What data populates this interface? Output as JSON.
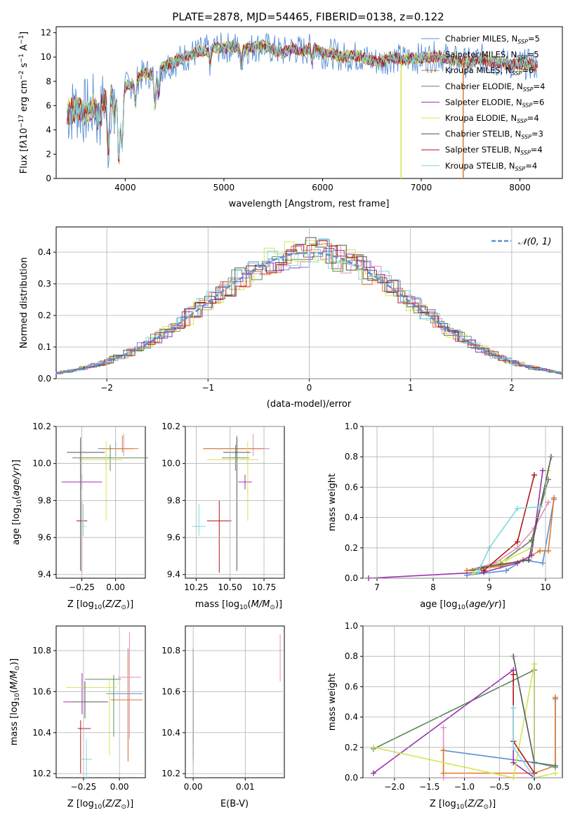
{
  "title": "PLATE=2878, MJD=54465, FIBERID=0138, z=0.122",
  "colors": {
    "chabrier_miles": "#5b8fd6",
    "salpeter_miles": "#e88bbf",
    "kroupa_miles": "#e07b28",
    "chabrier_elodie": "#5a8a5a",
    "salpeter_elodie": "#9c30b0",
    "kroupa_elodie": "#d4e650",
    "chabrier_stelib": "#555555",
    "salpeter_stelib": "#b01818",
    "kroupa_stelib": "#7fd9df"
  },
  "chart_data": [
    {
      "id": "spectrum",
      "type": "line",
      "title": "PLATE=2878, MJD=54465, FIBERID=0138, z=0.122",
      "xlabel": "wavelength [Angstrom, rest frame]",
      "ylabel": "Flux [f_λ 10^-17 erg cm^-2 s^-1 A^-1]",
      "xlim": [
        3300,
        8430
      ],
      "ylim": [
        0,
        12.5
      ],
      "xticks": [
        "4000",
        "5000",
        "6000",
        "7000",
        "8000"
      ],
      "yticks": [
        "0",
        "2",
        "4",
        "6",
        "8",
        "10",
        "12"
      ],
      "data_series": {
        "x": [
          3410,
          3500,
          3600,
          3700,
          3800,
          3900,
          3950,
          4000,
          4100,
          4200,
          4300,
          4400,
          4500,
          4600,
          4700,
          4800,
          4900,
          5000,
          5100,
          5200,
          5300,
          5400,
          5500,
          5600,
          5700,
          5800,
          5900,
          6000,
          6100,
          6200,
          6300,
          6400,
          6500,
          6600,
          6700,
          6800,
          6900,
          7000,
          7100,
          7200,
          7300,
          7400,
          7500,
          7600,
          7700,
          7800,
          7900,
          8000,
          8100,
          8180
        ],
        "y": [
          5.4,
          5.8,
          5.5,
          6.0,
          6.5,
          6.8,
          5.2,
          7.5,
          8.0,
          8.7,
          8.5,
          9.3,
          9.6,
          10.0,
          10.3,
          10.5,
          10.8,
          10.7,
          10.9,
          10.6,
          10.8,
          10.9,
          10.6,
          10.4,
          10.7,
          10.5,
          10.8,
          10.3,
          10.3,
          10.0,
          10.1,
          10.0,
          9.7,
          9.6,
          10.0,
          9.8,
          9.9,
          9.9,
          10.0,
          10.1,
          9.8,
          9.6,
          9.5,
          9.9,
          9.6,
          9.6,
          9.4,
          9.4,
          9.4,
          9.3
        ]
      },
      "legend": [
        "Chabrier MILES, N_SSP=5",
        "Salpeter MILES, N_SSP=5",
        "Kroupa MILES, N_SSP=6",
        "Chabrier ELODIE, N_SSP=4",
        "Salpeter ELODIE, N_SSP=6",
        "Kroupa ELODIE, N_SSP=4",
        "Chabrier STELIB, N_SSP=3",
        "Salpeter STELIB, N_SSP=4",
        "Kroupa STELIB, N_SSP=4"
      ],
      "legend_placement": "upper right",
      "grid": false
    },
    {
      "id": "residuals",
      "type": "histogram",
      "xlabel": "(data-model)/error",
      "ylabel": "Normed distribution",
      "xlim": [
        -2.5,
        2.5
      ],
      "ylim": [
        0,
        0.48
      ],
      "xticks": [
        "−2",
        "−1",
        "0",
        "1",
        "2"
      ],
      "yticks": [
        "0.0",
        "0.1",
        "0.2",
        "0.3",
        "0.4"
      ],
      "curve_label": "N(0,1)",
      "legend_placement": "upper right",
      "grid": true
    },
    {
      "id": "age_vs_Z",
      "type": "errorbar",
      "xlabel": "Z [log10(Z/Z⊙)]",
      "ylabel": "age  [log10(age/yr)]",
      "xlim": [
        -0.44,
        0.22
      ],
      "ylim": [
        9.38,
        10.2
      ],
      "xticks": [
        "−0.25",
        "0.00"
      ],
      "yticks": [
        "9.4",
        "9.6",
        "9.8",
        "10.0",
        "10.2"
      ],
      "points": [
        {
          "x": 0.0,
          "y": 10.08,
          "xerr": [
            0.13,
            0.13
          ],
          "yerr": [
            0.04,
            0.04
          ]
        },
        {
          "x": 0.06,
          "y": 10.08,
          "xerr": [
            0.07,
            0.07
          ],
          "yerr": [
            0.04,
            0.08
          ]
        },
        {
          "x": 0.05,
          "y": 10.08,
          "xerr": [
            0.15,
            0.12
          ],
          "yerr": [
            0.02,
            0.07
          ]
        },
        {
          "x": -0.04,
          "y": 10.03,
          "xerr": [
            0.28,
            0.28
          ],
          "yerr": [
            0.07,
            0.07
          ]
        },
        {
          "x": -0.25,
          "y": 9.9,
          "xerr": [
            0.15,
            0.15
          ],
          "yerr": [
            0.04,
            0.04
          ]
        },
        {
          "x": -0.07,
          "y": 10.02,
          "xerr": [
            0.2,
            0.12
          ],
          "yerr": [
            0.33,
            0.1
          ]
        },
        {
          "x": -0.26,
          "y": 10.06,
          "xerr": [
            0.1,
            0.18
          ],
          "yerr": [
            0.64,
            0.08
          ]
        },
        {
          "x": -0.25,
          "y": 9.69,
          "xerr": [
            0.04,
            0.04
          ],
          "yerr": [
            0.28,
            0.11
          ]
        },
        {
          "x": -0.24,
          "y": 9.66,
          "xerr": [
            0.02,
            0.02
          ],
          "yerr": [
            0.05,
            0.12
          ]
        }
      ]
    },
    {
      "id": "age_vs_mass",
      "type": "errorbar",
      "xlabel": "mass [log10(M/M⊙)]",
      "ylabel": "",
      "xlim": [
        10.17,
        10.9
      ],
      "ylim": [
        9.38,
        10.2
      ],
      "xticks": [
        "10.25",
        "10.50",
        "10.75"
      ],
      "yticks": [
        "9.4",
        "9.6",
        "9.8",
        "10.0",
        "10.2"
      ],
      "points": [
        {
          "x": 10.55,
          "y": 10.08,
          "xerr": [
            0.24,
            0.24
          ],
          "yerr": [
            0.04,
            0.04
          ]
        },
        {
          "x": 10.67,
          "y": 10.08,
          "xerr": [
            0.25,
            0.12
          ],
          "yerr": [
            0.04,
            0.08
          ]
        },
        {
          "x": 10.55,
          "y": 10.08,
          "xerr": [
            0.25,
            0.2
          ],
          "yerr": [
            0.02,
            0.07
          ]
        },
        {
          "x": 10.54,
          "y": 10.03,
          "xerr": [
            0.1,
            0.1
          ],
          "yerr": [
            0.07,
            0.07
          ]
        },
        {
          "x": 10.61,
          "y": 9.9,
          "xerr": [
            0.05,
            0.05
          ],
          "yerr": [
            0.04,
            0.04
          ]
        },
        {
          "x": 10.63,
          "y": 10.02,
          "xerr": [
            0.3,
            0.08
          ],
          "yerr": [
            0.33,
            0.1
          ]
        },
        {
          "x": 10.55,
          "y": 10.06,
          "xerr": [
            0.1,
            0.1
          ],
          "yerr": [
            0.64,
            0.08
          ]
        },
        {
          "x": 10.42,
          "y": 9.69,
          "xerr": [
            0.09,
            0.09
          ],
          "yerr": [
            0.28,
            0.11
          ]
        },
        {
          "x": 10.27,
          "y": 9.66,
          "xerr": [
            0.05,
            0.05
          ],
          "yerr": [
            0.05,
            0.12
          ]
        }
      ]
    },
    {
      "id": "weight_vs_age",
      "type": "line",
      "xlabel": "age  [log10(age/yr)]",
      "ylabel": "mass weight",
      "xlim": [
        6.75,
        10.3
      ],
      "ylim": [
        0,
        1
      ],
      "xticks": [
        "7",
        "8",
        "9",
        "10"
      ],
      "yticks": [
        "0.0",
        "0.2",
        "0.4",
        "0.6",
        "0.8",
        "1.0"
      ],
      "series": [
        {
          "color": "chabrier_miles",
          "x": [
            8.6,
            9.3,
            9.6,
            9.95,
            10.15
          ],
          "y": [
            0.02,
            0.05,
            0.12,
            0.1,
            0.52
          ]
        },
        {
          "color": "salpeter_miles",
          "x": [
            8.6,
            9.1,
            9.5,
            9.8,
            10.05
          ],
          "y": [
            0.05,
            0.1,
            0.2,
            0.33,
            0.5
          ]
        },
        {
          "color": "kroupa_miles",
          "x": [
            8.6,
            9.2,
            9.6,
            9.9,
            10.05,
            10.15
          ],
          "y": [
            0.05,
            0.08,
            0.12,
            0.18,
            0.18,
            0.53
          ]
        },
        {
          "color": "chabrier_elodie",
          "x": [
            8.7,
            9.2,
            9.75,
            10.05
          ],
          "y": [
            0.05,
            0.1,
            0.25,
            0.65
          ]
        },
        {
          "color": "salpeter_elodie",
          "x": [
            6.85,
            8.9,
            9.5,
            9.75,
            9.95
          ],
          "y": [
            0.0,
            0.04,
            0.1,
            0.15,
            0.71
          ]
        },
        {
          "color": "kroupa_elodie",
          "x": [
            8.7,
            9.3,
            9.75,
            10.05
          ],
          "y": [
            0.03,
            0.12,
            0.2,
            0.71
          ]
        },
        {
          "color": "chabrier_stelib",
          "x": [
            8.85,
            9.7,
            10.1
          ],
          "y": [
            0.07,
            0.12,
            0.8
          ]
        },
        {
          "color": "salpeter_stelib",
          "x": [
            8.9,
            9.5,
            9.8
          ],
          "y": [
            0.05,
            0.24,
            0.68
          ]
        },
        {
          "color": "kroupa_stelib",
          "x": [
            8.8,
            9.0,
            9.5,
            9.9
          ],
          "y": [
            0.04,
            0.2,
            0.46,
            0.47
          ]
        }
      ],
      "grid": true
    },
    {
      "id": "mass_vs_Z",
      "type": "errorbar",
      "xlabel": "Z [log10(Z/Z⊙)]",
      "ylabel": "mass [log10(M/M⊙)]",
      "xlim": [
        -0.44,
        0.18
      ],
      "ylim": [
        10.18,
        10.92
      ],
      "xticks": [
        "−0.25",
        "0.00"
      ],
      "yticks": [
        "10.2",
        "10.4",
        "10.6",
        "10.8"
      ],
      "points": [
        {
          "x": 0.06,
          "y": 10.59,
          "xerr": [
            0.15,
            0.1
          ],
          "yerr": [
            0.33,
            0.22
          ]
        },
        {
          "x": 0.07,
          "y": 10.67,
          "xerr": [
            0.08,
            0.08
          ],
          "yerr": [
            0.3,
            0.22
          ]
        },
        {
          "x": 0.06,
          "y": 10.56,
          "xerr": [
            0.12,
            0.1
          ],
          "yerr": [
            0.3,
            0.25
          ]
        },
        {
          "x": -0.04,
          "y": 10.66,
          "xerr": [
            0.2,
            0.05
          ],
          "yerr": [
            0.28,
            0.02
          ]
        },
        {
          "x": -0.26,
          "y": 10.55,
          "xerr": [
            0.13,
            0.18
          ],
          "yerr": [
            0.06,
            0.14
          ]
        },
        {
          "x": -0.07,
          "y": 10.62,
          "xerr": [
            0.3,
            0.05
          ],
          "yerr": [
            0.33,
            0.05
          ]
        },
        {
          "x": -0.24,
          "y": 10.55,
          "xerr": [
            0.07,
            0.12
          ],
          "yerr": [
            0.08,
            0.1
          ]
        },
        {
          "x": -0.27,
          "y": 10.42,
          "xerr": [
            0.02,
            0.07
          ],
          "yerr": [
            0.22,
            0.04
          ]
        },
        {
          "x": -0.23,
          "y": 10.27,
          "xerr": [
            0.04,
            0.04
          ],
          "yerr": [
            0.1,
            0.1
          ]
        }
      ]
    },
    {
      "id": "mass_vs_ebv",
      "type": "errorbar",
      "xlabel": "E(B-V)",
      "ylabel": "",
      "xlim": [
        -0.0015,
        0.0175
      ],
      "ylim": [
        10.18,
        10.92
      ],
      "xticks": [
        "0.00",
        "0.01"
      ],
      "yticks": [
        "10.2",
        "10.4",
        "10.6",
        "10.8"
      ],
      "points": [
        {
          "x": 0.0,
          "y": 10.59,
          "xerr": [
            0,
            0
          ],
          "yerr": [
            0.33,
            0.22
          ]
        },
        {
          "x": 0.0167,
          "y": 10.77,
          "xerr": [
            0,
            0
          ],
          "yerr": [
            0.12,
            0.11
          ]
        },
        {
          "x": 0.0,
          "y": 10.56,
          "xerr": [
            0,
            0
          ],
          "yerr": [
            0.3,
            0.25
          ]
        },
        {
          "x": 0.0,
          "y": 10.51,
          "xerr": [
            0,
            0
          ],
          "yerr": [
            0.16,
            0.17
          ]
        },
        {
          "x": 0.0,
          "y": 10.55,
          "xerr": [
            0,
            0
          ],
          "yerr": [
            0.06,
            0.1
          ]
        },
        {
          "x": 0.0,
          "y": 10.5,
          "xerr": [
            0,
            0
          ],
          "yerr": [
            0.1,
            0.1
          ]
        },
        {
          "x": 0.0,
          "y": 10.5,
          "xerr": [
            0,
            0
          ],
          "yerr": [
            0.15,
            0.1
          ]
        },
        {
          "x": 0.0,
          "y": 10.4,
          "xerr": [
            0,
            0
          ],
          "yerr": [
            0.12,
            0.08
          ]
        },
        {
          "x": 0.0,
          "y": 10.45,
          "xerr": [
            0,
            0
          ],
          "yerr": [
            0.25,
            0.35
          ]
        }
      ]
    },
    {
      "id": "weight_vs_Z",
      "type": "line",
      "xlabel": "Z [log10(Z/Z⊙)]",
      "ylabel": "mass weight",
      "xlim": [
        -2.45,
        0.4
      ],
      "ylim": [
        0,
        1
      ],
      "xticks": [
        "−2.0",
        "−1.5",
        "−1.0",
        "−0.5",
        "0.0"
      ],
      "yticks": [
        "0.0",
        "0.2",
        "0.4",
        "0.6",
        "0.8",
        "1.0"
      ],
      "series": [
        {
          "color": "chabrier_miles",
          "x": [
            -1.3,
            0.0,
            0.3,
            0.3
          ],
          "y": [
            0.18,
            0.1,
            0.07,
            0.52
          ]
        },
        {
          "color": "salpeter_miles",
          "x": [
            -1.3,
            -1.3,
            0.0
          ],
          "y": [
            0.33,
            0.0,
            0.0
          ]
        },
        {
          "color": "kroupa_miles",
          "x": [
            -1.3,
            -1.3,
            0.0,
            0.3,
            0.3
          ],
          "y": [
            0.18,
            0.03,
            0.03,
            0.08,
            0.53
          ]
        },
        {
          "color": "chabrier_elodie",
          "x": [
            -2.3,
            0.0,
            0.0,
            0.3
          ],
          "y": [
            0.19,
            0.71,
            0.1,
            0.08
          ]
        },
        {
          "color": "salpeter_elodie",
          "x": [
            -2.3,
            -0.3,
            -0.3,
            0.0
          ],
          "y": [
            0.03,
            0.71,
            0.1,
            0.0
          ]
        },
        {
          "color": "kroupa_elodie",
          "x": [
            -2.3,
            -0.3,
            0.0,
            0.0,
            0.3
          ],
          "y": [
            0.2,
            0.0,
            0.75,
            0.0,
            0.03
          ]
        },
        {
          "color": "chabrier_stelib",
          "x": [
            -0.3,
            0.0,
            0.0
          ],
          "y": [
            0.8,
            0.1,
            0.0
          ]
        },
        {
          "color": "salpeter_stelib",
          "x": [
            -0.3,
            -0.3,
            0.0
          ],
          "y": [
            0.68,
            0.24,
            0.03
          ]
        },
        {
          "color": "kroupa_stelib",
          "x": [
            -0.3,
            -0.3,
            0.0
          ],
          "y": [
            0.46,
            0.2,
            0.0
          ]
        }
      ],
      "grid": true
    }
  ]
}
